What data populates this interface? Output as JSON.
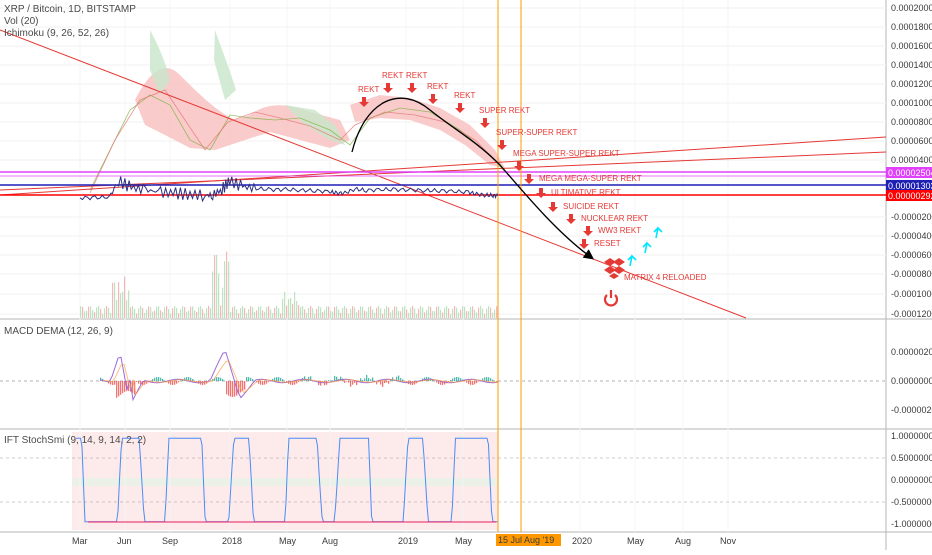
{
  "legend": {
    "symbol": "XRP / Bitcoin, 1D, BITSTAMP",
    "volume": "Vol (20)",
    "ichimoku": "Ichimoku (9, 26, 52, 26)",
    "macd": "MACD DEMA (12, 26, 9)",
    "ift": "IFT StochSmi (9, 14, 9, 14, 2, 2)"
  },
  "colors": {
    "price": "#2a2f80",
    "arrow": "#e53935",
    "annotation": "#e53935",
    "kumo_bear": "#f8b9b9",
    "kumo_bull": "#c8e6c9",
    "macd_line": "#9c6ad9",
    "signal_line": "#ff9f43",
    "hist_pos": "#26a69a",
    "hist_neg": "#ef5350",
    "ift_line": "#4c8bf5",
    "ift_overbought": "#e91e63",
    "vertical_marker": "#ff9800",
    "magenta_level": "#e040fb",
    "blue_level": "#1e1fb5",
    "red_level": "#ff0000",
    "cyan_arrow": "#00e5ff"
  },
  "chart_data": [
    {
      "type": "line",
      "title": "XRP / Bitcoin, 1D, BITSTAMP",
      "x": [
        "2017-03-01",
        "2017-04-01",
        "2017-05-01",
        "2017-05-20",
        "2017-06-15",
        "2017-07-15",
        "2017-08-15",
        "2017-09-15",
        "2017-10-15",
        "2017-11-15",
        "2017-12-01",
        "2017-12-20",
        "2018-01-05",
        "2018-02-01",
        "2018-03-01",
        "2018-04-01",
        "2018-05-01",
        "2018-06-01",
        "2018-07-01",
        "2018-08-01",
        "2018-08-15",
        "2018-09-01",
        "2018-09-22",
        "2018-10-15",
        "2018-11-15",
        "2018-12-15",
        "2019-01-15",
        "2019-02-15",
        "2019-03-15",
        "2019-04-15",
        "2019-05-15",
        "2019-06-01",
        "2019-06-20",
        "2019-07-05",
        "2019-07-15"
      ],
      "y": [
        2e-07,
        3e-07,
        1.2e-06,
        1.8e-05,
        1.1e-05,
        8.5e-06,
        6e-06,
        5e-06,
        3.8e-06,
        2.8e-06,
        3e-06,
        9e-06,
        1.8e-05,
        1.2e-05,
        1e-05,
        8.8e-06,
        9e-06,
        8.2e-06,
        7.8e-06,
        6.6e-06,
        5e-06,
        5.2e-06,
        9.5e-06,
        8e-06,
        9e-06,
        8.8e-06,
        8.5e-06,
        8e-06,
        7.8e-06,
        7e-06,
        6e-06,
        4.2e-06,
        3e-06,
        2.7e-06,
        2.5e-06
      ],
      "x_ticks": [
        "Mar",
        "Jun",
        "Sep",
        "2018",
        "May",
        "Aug",
        "2019",
        "May",
        "15 Jul '19",
        "Aug '19",
        "2020",
        "May",
        "Aug",
        "Nov"
      ],
      "y_ticks": [
        "0.00020000",
        "0.00018000",
        "0.00016000",
        "0.00014000",
        "0.00012000",
        "0.00010000",
        "0.00008000",
        "0.00006000",
        "0.00004000",
        "0.00002504",
        "0.00001303",
        "0.00000292",
        "-0.00002000",
        "-0.00004000",
        "-0.00006000",
        "-0.00008000",
        "-0.00010000",
        "-0.00012000"
      ],
      "price_levels": {
        "magenta": "0.00002504",
        "blue": "0.00001303",
        "red": "0.00000292"
      },
      "annotations": [
        "REKT",
        "REKT",
        "REKT",
        "REKT",
        "REKT",
        "SUPER REKT",
        "SUPER-SUPER REKT",
        "MEGA SUPER-SUPER REKT",
        "MEGA MEGA-SUPER REKT",
        "ULTIMATIVE REKT",
        "SUICIDE REKT",
        "NUCKLEAR REKT",
        "WW3 REKT",
        "RESET",
        "MATRIX 4 RELOADED"
      ],
      "grid": true,
      "legend": "top-left"
    },
    {
      "type": "line",
      "title": "MACD DEMA (12, 26, 9)",
      "y_ticks": [
        "0.00000200",
        "0.00000000",
        "-0.00000200"
      ],
      "x": [
        "2017-05-20",
        "2017-06-15",
        "2017-07-15",
        "2017-12-20",
        "2018-01-05",
        "2018-02-01",
        "2018-08-15",
        "2018-09-22",
        "2019-06-20"
      ],
      "macd": [
        2.1e-06,
        -1.8e-06,
        2e-07,
        1.6e-06,
        2.1e-06,
        -1.1e-06,
        -2e-07,
        3e-07,
        -1e-07
      ],
      "grid": true
    },
    {
      "type": "line",
      "title": "IFT StochSmi (9, 14, 9, 14, 2, 2)",
      "y_ticks": [
        "1.00000000",
        "0.50000000",
        "0.00000000",
        "-0.50000000",
        "-1.00000000"
      ],
      "ylim": [
        -1,
        1
      ],
      "grid": true
    }
  ]
}
